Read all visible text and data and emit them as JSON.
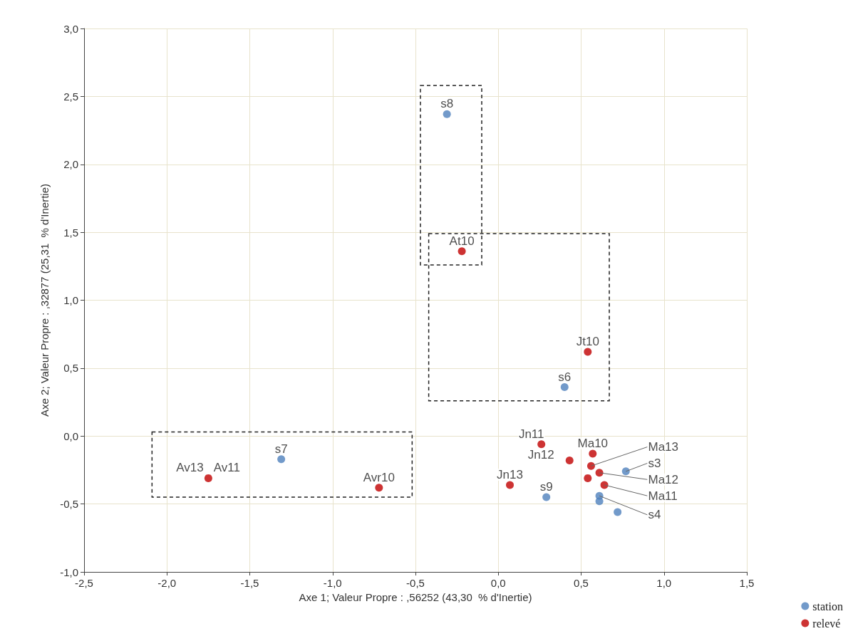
{
  "chart_data": {
    "type": "scatter",
    "xlabel": "Axe 1; Valeur Propre : ,56252 (43,30  % d'Inertie)",
    "ylabel": "Axe 2; Valeur Propre : ,32877 (25,31  % d'Inertie)",
    "xlim": [
      -2.5,
      1.5
    ],
    "ylim": [
      -1.0,
      3.0
    ],
    "xticks": [
      {
        "value": -2.5,
        "label": "-2,5"
      },
      {
        "value": -2.0,
        "label": "-2,0"
      },
      {
        "value": -1.5,
        "label": "-1,5"
      },
      {
        "value": -1.0,
        "label": "-1,0"
      },
      {
        "value": -0.5,
        "label": "-0,5"
      },
      {
        "value": 0,
        "label": "0,0"
      },
      {
        "value": 0.5,
        "label": "0,5"
      },
      {
        "value": 1.0,
        "label": "1,0"
      },
      {
        "value": 1.5,
        "label": "1,5"
      }
    ],
    "yticks": [
      {
        "value": -1.0,
        "label": "-1,0"
      },
      {
        "value": -0.5,
        "label": "-0,5"
      },
      {
        "value": 0,
        "label": "0,0"
      },
      {
        "value": 0.5,
        "label": "0,5"
      },
      {
        "value": 1.0,
        "label": "1,0"
      },
      {
        "value": 1.5,
        "label": "1,5"
      },
      {
        "value": 2.0,
        "label": "2,0"
      },
      {
        "value": 2.5,
        "label": "2,5"
      },
      {
        "value": 3.0,
        "label": "3,0"
      }
    ],
    "grid": true,
    "legend": "bottom right",
    "marker": "circle",
    "series": [
      {
        "name": "station",
        "color": "#4f81bd",
        "x": [
          -0.31,
          0.4,
          -1.31,
          0.29,
          0.77,
          0.61,
          0.61,
          0.72
        ],
        "values": [
          2.37,
          0.36,
          -0.17,
          -0.45,
          -0.26,
          -0.44,
          -0.48,
          -0.56
        ]
      },
      {
        "name": "relevé",
        "color": "#c00000",
        "x": [
          -0.22,
          0.54,
          null,
          -1.75,
          -0.72,
          0.26,
          0.07,
          0.43,
          0.57,
          0.56,
          0.54,
          0.61,
          0.64
        ],
        "values": [
          1.36,
          0.62,
          null,
          -0.31,
          -0.38,
          -0.06,
          -0.36,
          -0.18,
          -0.13,
          -0.22,
          -0.31,
          -0.27,
          -0.36
        ]
      }
    ],
    "annotations": [
      {
        "text": "s8",
        "x": -0.31,
        "y": 2.37
      },
      {
        "text": "s6",
        "x": 0.4,
        "y": 0.36
      },
      {
        "text": "s7",
        "x": -1.31,
        "y": -0.17
      },
      {
        "text": "s9",
        "x": 0.29,
        "y": -0.45
      },
      {
        "text": "s3",
        "x": 0.77,
        "y": -0.26
      },
      {
        "text": "s4",
        "x": 0.61,
        "y": -0.44
      },
      {
        "text": "At10",
        "x": -0.22,
        "y": 1.36
      },
      {
        "text": "Jt10",
        "x": 0.54,
        "y": 0.62
      },
      {
        "text": "Av13",
        "x": -1.75,
        "y": -0.31
      },
      {
        "text": "Av11",
        "x": -1.75,
        "y": -0.31
      },
      {
        "text": "Avr10",
        "x": -0.72,
        "y": -0.38
      },
      {
        "text": "Jn11",
        "x": 0.26,
        "y": -0.06
      },
      {
        "text": "Jn13",
        "x": 0.07,
        "y": -0.36
      },
      {
        "text": "Jn12",
        "x": 0.43,
        "y": -0.18
      },
      {
        "text": "Ma10",
        "x": 0.57,
        "y": -0.13
      },
      {
        "text": "Ma13",
        "x": 0.56,
        "y": -0.22
      },
      {
        "text": "Ma12",
        "x": 0.61,
        "y": -0.27
      },
      {
        "text": "Ma11",
        "x": 0.64,
        "y": -0.36
      }
    ]
  }
}
